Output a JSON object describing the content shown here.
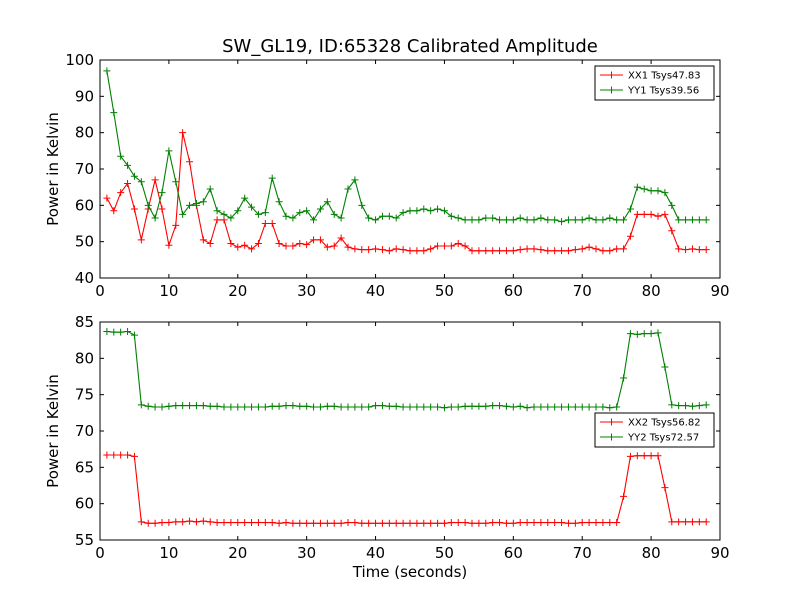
{
  "title": "SW_GL19, ID:65328 Calibrated Amplitude",
  "colors": {
    "red": "#ff0000",
    "green": "#008000"
  },
  "chart_data": [
    {
      "type": "line",
      "title": "SW_GL19, ID:65328 Calibrated Amplitude",
      "xlabel": "",
      "ylabel": "Power in Kelvin",
      "xlim": [
        0,
        90
      ],
      "ylim": [
        40,
        100
      ],
      "xticks": [
        "0",
        "10",
        "20",
        "30",
        "40",
        "50",
        "60",
        "70",
        "80",
        "90"
      ],
      "yticks": [
        "40",
        "50",
        "60",
        "70",
        "80",
        "90",
        "100"
      ],
      "grid": false,
      "legend_position": "top-right",
      "x": [
        1,
        2,
        3,
        4,
        5,
        6,
        7,
        8,
        9,
        10,
        11,
        12,
        13,
        14,
        15,
        16,
        17,
        18,
        19,
        20,
        21,
        22,
        23,
        24,
        25,
        26,
        27,
        28,
        29,
        30,
        31,
        32,
        33,
        34,
        35,
        36,
        37,
        38,
        39,
        40,
        41,
        42,
        43,
        44,
        45,
        46,
        47,
        48,
        49,
        50,
        51,
        52,
        53,
        54,
        55,
        56,
        57,
        58,
        59,
        60,
        61,
        62,
        63,
        64,
        65,
        66,
        67,
        68,
        69,
        70,
        71,
        72,
        73,
        74,
        75,
        76,
        77,
        78,
        79,
        80,
        81,
        82,
        83,
        84,
        85,
        86,
        87,
        88
      ],
      "series": [
        {
          "name": "XX1 Tsys47.83",
          "color": "#ff0000",
          "values": [
            62,
            58.5,
            63.5,
            66,
            59,
            50.5,
            59,
            67,
            59,
            49,
            54.5,
            80,
            72,
            60,
            50.5,
            49.5,
            56,
            56,
            49.5,
            48.5,
            49,
            48,
            49.5,
            55,
            55,
            49.5,
            48.8,
            48.8,
            49.5,
            49.2,
            50.5,
            50.5,
            48.5,
            48.8,
            51,
            48.5,
            48,
            47.8,
            47.8,
            48,
            47.8,
            47.5,
            48,
            47.8,
            47.5,
            47.5,
            47.5,
            48,
            48.8,
            48.8,
            48.8,
            49.5,
            48.8,
            47.5,
            47.5,
            47.5,
            47.5,
            47.5,
            47.5,
            47.5,
            47.8,
            48,
            48,
            47.8,
            47.5,
            47.5,
            47.5,
            47.5,
            47.8,
            48,
            48.5,
            48,
            47.5,
            47.5,
            48,
            48,
            51.5,
            57.5,
            57.5,
            57.5,
            57,
            57.5,
            53,
            48,
            47.8,
            48,
            47.8,
            47.8
          ]
        },
        {
          "name": "YY1 Tsys39.56",
          "color": "#008000",
          "values": [
            97,
            85.5,
            73.5,
            71,
            68,
            66.5,
            60,
            56.5,
            63.5,
            75,
            66.5,
            57.5,
            60,
            60.5,
            61,
            64.5,
            58.5,
            57.5,
            56.5,
            58.5,
            62,
            59.5,
            57.5,
            58,
            67.5,
            61,
            57,
            56.5,
            58,
            58.5,
            56,
            59,
            61,
            57.5,
            56.5,
            64.5,
            67,
            60,
            56.5,
            56,
            57,
            57,
            56.5,
            58,
            58.5,
            58.5,
            59,
            58.5,
            59,
            58.5,
            57,
            56.5,
            56,
            56,
            56,
            56.5,
            56.5,
            56,
            56,
            56,
            56.5,
            56,
            56,
            56.5,
            56,
            56,
            55.5,
            56,
            56,
            56,
            56.5,
            56,
            56,
            56.5,
            56,
            56,
            59,
            65,
            64.5,
            64,
            64,
            63.5,
            60,
            56,
            56,
            56,
            56,
            56
          ]
        }
      ]
    },
    {
      "type": "line",
      "title": "",
      "xlabel": "Time (seconds)",
      "ylabel": "Power in Kelvin",
      "xlim": [
        0,
        90
      ],
      "ylim": [
        55,
        85
      ],
      "xticks": [
        "0",
        "10",
        "20",
        "30",
        "40",
        "50",
        "60",
        "70",
        "80",
        "90"
      ],
      "yticks": [
        "55",
        "60",
        "65",
        "70",
        "75",
        "80",
        "85"
      ],
      "grid": false,
      "legend_position": "center-right",
      "x": [
        1,
        2,
        3,
        4,
        5,
        6,
        7,
        8,
        9,
        10,
        11,
        12,
        13,
        14,
        15,
        16,
        17,
        18,
        19,
        20,
        21,
        22,
        23,
        24,
        25,
        26,
        27,
        28,
        29,
        30,
        31,
        32,
        33,
        34,
        35,
        36,
        37,
        38,
        39,
        40,
        41,
        42,
        43,
        44,
        45,
        46,
        47,
        48,
        49,
        50,
        51,
        52,
        53,
        54,
        55,
        56,
        57,
        58,
        59,
        60,
        61,
        62,
        63,
        64,
        65,
        66,
        67,
        68,
        69,
        70,
        71,
        72,
        73,
        74,
        75,
        76,
        77,
        78,
        79,
        80,
        81,
        82,
        83,
        84,
        85,
        86,
        87,
        88
      ],
      "series": [
        {
          "name": "XX2 Tsys56.82",
          "color": "#ff0000",
          "values": [
            66.7,
            66.7,
            66.7,
            66.7,
            66.5,
            57.5,
            57.3,
            57.3,
            57.4,
            57.4,
            57.5,
            57.5,
            57.6,
            57.5,
            57.6,
            57.5,
            57.4,
            57.4,
            57.4,
            57.4,
            57.4,
            57.4,
            57.4,
            57.4,
            57.4,
            57.3,
            57.4,
            57.3,
            57.3,
            57.3,
            57.3,
            57.3,
            57.3,
            57.3,
            57.3,
            57.4,
            57.4,
            57.3,
            57.3,
            57.3,
            57.3,
            57.3,
            57.3,
            57.3,
            57.3,
            57.3,
            57.3,
            57.3,
            57.3,
            57.3,
            57.4,
            57.4,
            57.4,
            57.3,
            57.3,
            57.3,
            57.4,
            57.4,
            57.3,
            57.3,
            57.4,
            57.4,
            57.4,
            57.4,
            57.4,
            57.4,
            57.4,
            57.3,
            57.3,
            57.4,
            57.4,
            57.4,
            57.4,
            57.4,
            57.4,
            61,
            66.5,
            66.6,
            66.6,
            66.6,
            66.6,
            62.2,
            57.5,
            57.5,
            57.5,
            57.5,
            57.5,
            57.5
          ]
        },
        {
          "name": "YY2 Tsys72.57",
          "color": "#008000",
          "values": [
            83.7,
            83.6,
            83.6,
            83.7,
            83.2,
            73.6,
            73.4,
            73.3,
            73.3,
            73.4,
            73.5,
            73.5,
            73.5,
            73.5,
            73.5,
            73.4,
            73.4,
            73.3,
            73.3,
            73.3,
            73.3,
            73.3,
            73.3,
            73.3,
            73.4,
            73.4,
            73.5,
            73.5,
            73.4,
            73.4,
            73.3,
            73.3,
            73.4,
            73.4,
            73.3,
            73.3,
            73.3,
            73.3,
            73.3,
            73.5,
            73.5,
            73.4,
            73.4,
            73.3,
            73.3,
            73.3,
            73.3,
            73.3,
            73.3,
            73.2,
            73.3,
            73.3,
            73.4,
            73.4,
            73.4,
            73.4,
            73.5,
            73.5,
            73.4,
            73.3,
            73.4,
            73.2,
            73.3,
            73.3,
            73.3,
            73.3,
            73.3,
            73.3,
            73.3,
            73.3,
            73.3,
            73.3,
            73.3,
            73.2,
            73.3,
            77.3,
            83.4,
            83.3,
            83.4,
            83.4,
            83.5,
            78.8,
            73.6,
            73.5,
            73.5,
            73.4,
            73.5,
            73.6
          ]
        }
      ]
    }
  ]
}
